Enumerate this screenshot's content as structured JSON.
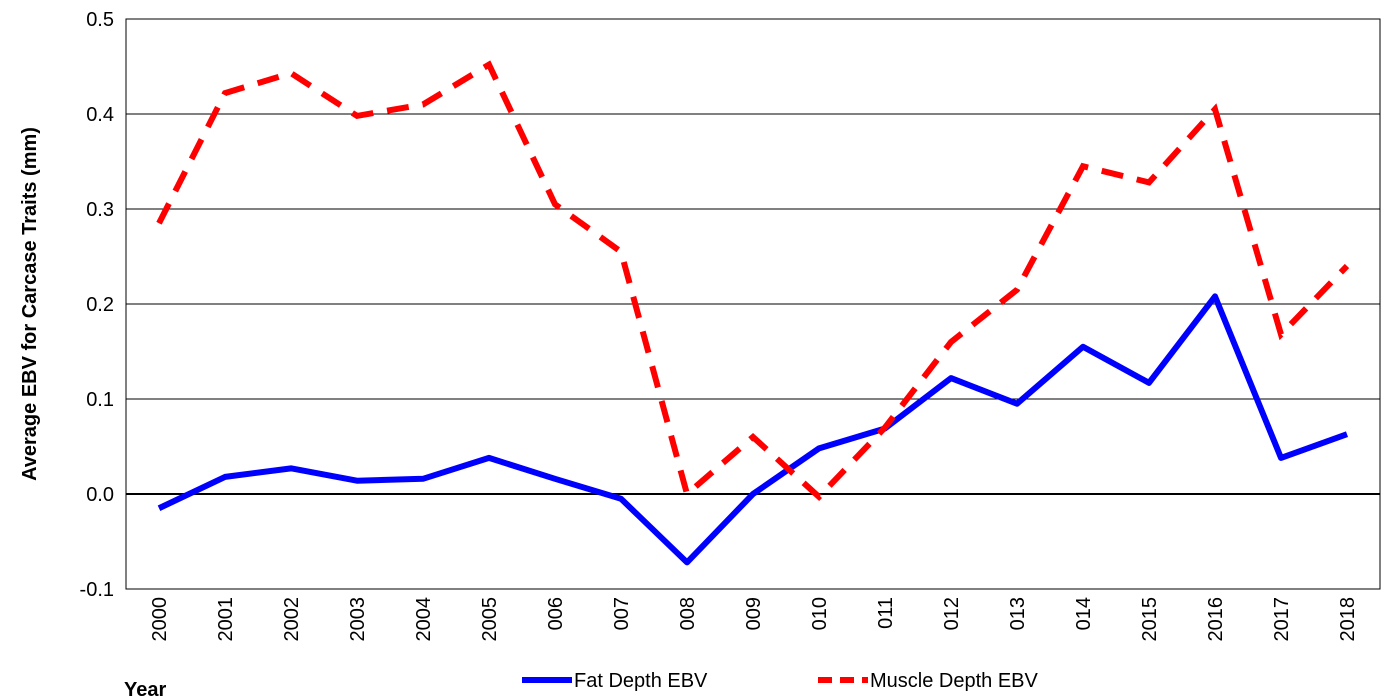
{
  "chart_data": {
    "type": "line",
    "y_label": "Average EBV for Carcase Traits (mm)",
    "x_label": "Year",
    "categories": [
      "2000",
      "2001",
      "2002",
      "2003",
      "2004",
      "2005",
      "006",
      "007",
      "008",
      "009",
      "010",
      "011",
      "012",
      "013",
      "014",
      "2015",
      "2016",
      "2017",
      "2018"
    ],
    "series": [
      {
        "name": "Fat Depth EBV",
        "color": "#0000ff",
        "dash": false,
        "values": [
          -0.015,
          0.018,
          0.027,
          0.014,
          0.016,
          0.038,
          0.016,
          -0.005,
          -0.072,
          0.0,
          0.048,
          0.069,
          0.122,
          0.095,
          0.155,
          0.117,
          0.208,
          0.038,
          0.063
        ]
      },
      {
        "name": "Muscle Depth EBV",
        "color": "#ff0000",
        "dash": true,
        "values": [
          0.285,
          0.422,
          0.443,
          0.398,
          0.41,
          0.452,
          0.305,
          0.255,
          0.0,
          0.06,
          -0.003,
          0.07,
          0.16,
          0.215,
          0.345,
          0.328,
          0.405,
          0.168,
          0.24
        ]
      }
    ],
    "ylim": [
      -0.1,
      0.5
    ],
    "yticks": [
      -0.1,
      {
        "value": 0,
        "label": "0.0"
      },
      0.1,
      0.2,
      0.3,
      0.4,
      0.5
    ],
    "grid": true,
    "legend": "bottom"
  }
}
